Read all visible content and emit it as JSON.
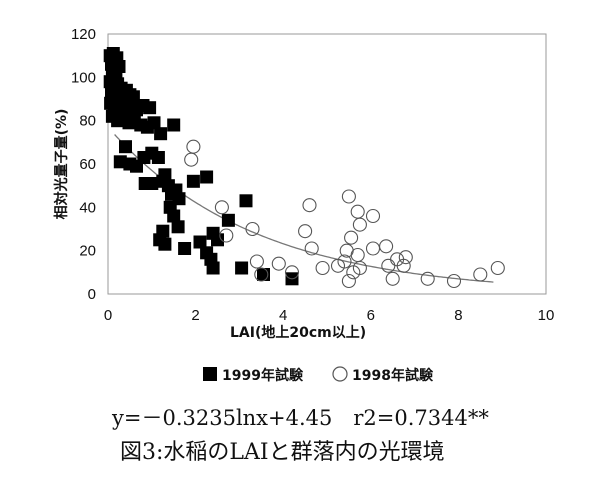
{
  "chart_data": {
    "type": "scatter",
    "xlabel": "LAI(地上20cm以上)",
    "ylabel": "相対光量子量(%)",
    "xlim": [
      0,
      10
    ],
    "ylim": [
      0,
      120
    ],
    "x_ticks": [
      "0",
      "2",
      "4",
      "6",
      "8",
      "10"
    ],
    "y_ticks": [
      "0",
      "20",
      "40",
      "60",
      "80",
      "100",
      "120"
    ],
    "grid": false,
    "legend_position": "bottom",
    "series": [
      {
        "name": "1999年試験",
        "marker": "filled-square",
        "color": "#000000",
        "points": [
          [
            0.05,
            110
          ],
          [
            0.12,
            111
          ],
          [
            0.2,
            109
          ],
          [
            0.08,
            106
          ],
          [
            0.15,
            104
          ],
          [
            0.25,
            105
          ],
          [
            0.1,
            101
          ],
          [
            0.18,
            100
          ],
          [
            0.05,
            98
          ],
          [
            0.12,
            96
          ],
          [
            0.22,
            97
          ],
          [
            0.3,
            95
          ],
          [
            0.08,
            93
          ],
          [
            0.16,
            91
          ],
          [
            0.28,
            92
          ],
          [
            0.35,
            90
          ],
          [
            0.42,
            94
          ],
          [
            0.5,
            92
          ],
          [
            0.58,
            91
          ],
          [
            0.06,
            88
          ],
          [
            0.14,
            86
          ],
          [
            0.24,
            87
          ],
          [
            0.33,
            85
          ],
          [
            0.45,
            84
          ],
          [
            0.55,
            86
          ],
          [
            0.65,
            85
          ],
          [
            0.8,
            87
          ],
          [
            0.1,
            82
          ],
          [
            0.22,
            80
          ],
          [
            0.35,
            81
          ],
          [
            0.48,
            79
          ],
          [
            0.95,
            86
          ],
          [
            0.6,
            80
          ],
          [
            0.75,
            78
          ],
          [
            0.9,
            77
          ],
          [
            1.05,
            79
          ],
          [
            1.2,
            74
          ],
          [
            1.5,
            78
          ],
          [
            0.4,
            68
          ],
          [
            0.28,
            61
          ],
          [
            0.5,
            60
          ],
          [
            0.65,
            59
          ],
          [
            0.82,
            63
          ],
          [
            1.0,
            65
          ],
          [
            1.15,
            63
          ],
          [
            1.25,
            52
          ],
          [
            0.85,
            51
          ],
          [
            1.0,
            51
          ],
          [
            1.3,
            55
          ],
          [
            1.38,
            50
          ],
          [
            1.45,
            46
          ],
          [
            1.55,
            48
          ],
          [
            1.62,
            44
          ],
          [
            1.42,
            40
          ],
          [
            1.5,
            36
          ],
          [
            1.6,
            31
          ],
          [
            1.25,
            29
          ],
          [
            1.18,
            25
          ],
          [
            1.3,
            23
          ],
          [
            1.75,
            21
          ],
          [
            1.95,
            52
          ],
          [
            2.25,
            54
          ],
          [
            2.1,
            24
          ],
          [
            2.25,
            19
          ],
          [
            2.35,
            16
          ],
          [
            2.4,
            28
          ],
          [
            2.5,
            25
          ],
          [
            2.4,
            12
          ],
          [
            2.75,
            34
          ],
          [
            3.15,
            43
          ],
          [
            3.05,
            12
          ],
          [
            3.55,
            9
          ],
          [
            4.2,
            7
          ]
        ]
      },
      {
        "name": "1998年試験",
        "marker": "open-circle",
        "color": "#000000",
        "points": [
          [
            1.95,
            68
          ],
          [
            1.9,
            62
          ],
          [
            2.6,
            40
          ],
          [
            2.7,
            27
          ],
          [
            3.3,
            30
          ],
          [
            3.4,
            15
          ],
          [
            3.5,
            9
          ],
          [
            3.9,
            14
          ],
          [
            4.2,
            10
          ],
          [
            4.5,
            29
          ],
          [
            4.6,
            41
          ],
          [
            4.65,
            21
          ],
          [
            4.9,
            12
          ],
          [
            5.25,
            13
          ],
          [
            5.4,
            15
          ],
          [
            5.5,
            45
          ],
          [
            5.55,
            26
          ],
          [
            5.45,
            20
          ],
          [
            5.6,
            10
          ],
          [
            5.5,
            6
          ],
          [
            5.7,
            38
          ],
          [
            5.75,
            32
          ],
          [
            5.7,
            18
          ],
          [
            5.75,
            12
          ],
          [
            6.05,
            36
          ],
          [
            6.05,
            21
          ],
          [
            6.35,
            22
          ],
          [
            6.4,
            13
          ],
          [
            6.5,
            7
          ],
          [
            6.6,
            16
          ],
          [
            6.75,
            13
          ],
          [
            6.8,
            17
          ],
          [
            7.3,
            7
          ],
          [
            7.9,
            6
          ],
          [
            8.5,
            9
          ],
          [
            8.9,
            12
          ]
        ]
      }
    ],
    "trendline": {
      "type": "logarithmic",
      "a": -0.3235,
      "b": 4.45
    }
  },
  "equation": "y=－0.3235lnx+4.45　r2=0.7344**",
  "caption": "図3:水稲のLAIと群落内の光環境"
}
